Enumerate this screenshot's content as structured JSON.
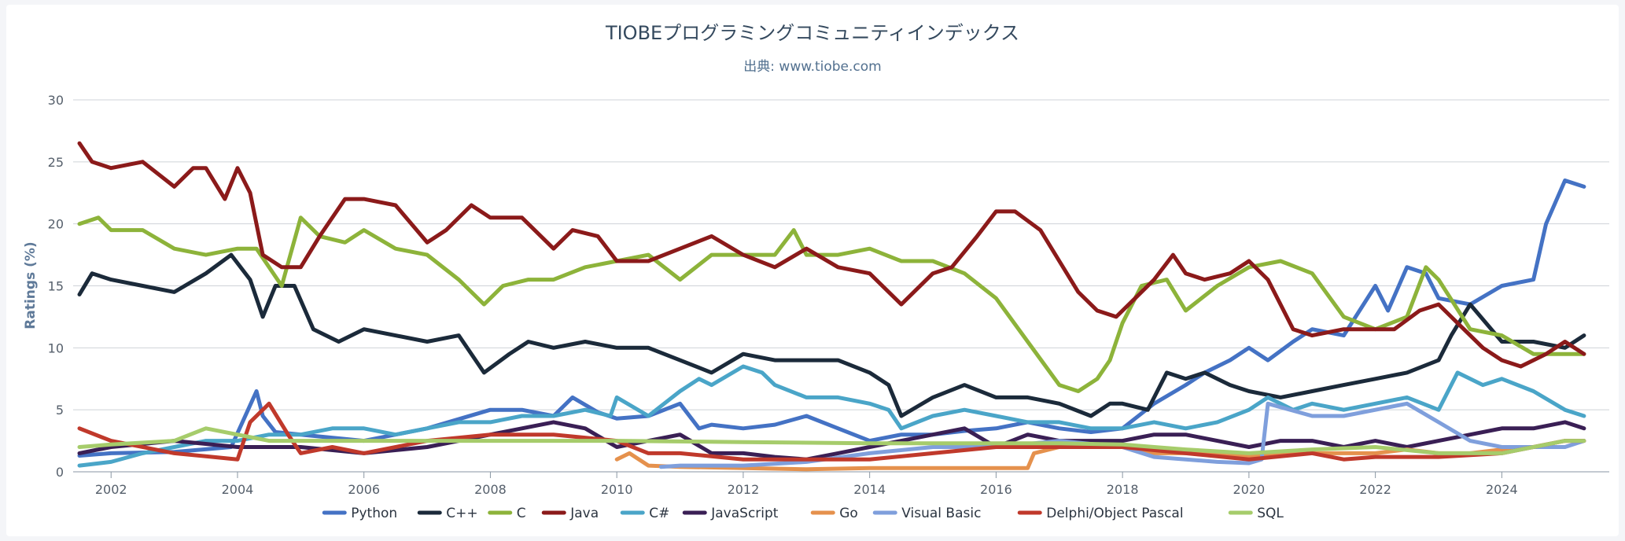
{
  "chart_data": {
    "type": "line",
    "title": "TIOBEプログラミングコミュニティインデックス",
    "subtitle": "出典: www.tiobe.com",
    "ylabel": "Ratings (%)",
    "xlabel": "",
    "xlim": [
      2001.4,
      2025.7
    ],
    "ylim": [
      0,
      30
    ],
    "yticks": [
      0,
      5,
      10,
      15,
      20,
      25,
      30
    ],
    "xticks": [
      2002,
      2004,
      2006,
      2008,
      2010,
      2012,
      2014,
      2016,
      2018,
      2020,
      2022,
      2024
    ],
    "grid": true,
    "legend_position": "bottom",
    "series": [
      {
        "name": "Python",
        "color": "#4472c4",
        "x": [
          2001.5,
          2002,
          2003,
          2003.9,
          2004.3,
          2004.4,
          2004.6,
          2005,
          2006,
          2007,
          2008,
          2008.5,
          2009,
          2009.3,
          2009.7,
          2010,
          2010.5,
          2011,
          2011.3,
          2011.5,
          2012,
          2012.5,
          2013,
          2013.5,
          2014,
          2014.5,
          2015,
          2015.5,
          2016,
          2016.5,
          2017,
          2017.5,
          2018,
          2018.5,
          2019,
          2019.3,
          2019.7,
          2020,
          2020.3,
          2020.7,
          2021,
          2021.5,
          2022,
          2022.2,
          2022.5,
          2022.8,
          2023,
          2023.5,
          2024,
          2024.5,
          2024.7,
          2025,
          2025.3
        ],
        "y": [
          1.3,
          1.5,
          1.6,
          2,
          6.5,
          4.5,
          3.2,
          3,
          2.5,
          3.5,
          5,
          5,
          4.5,
          6,
          4.8,
          4.3,
          4.5,
          5.5,
          3.5,
          3.8,
          3.5,
          3.8,
          4.5,
          3.5,
          2.5,
          3,
          3,
          3.3,
          3.5,
          4,
          3.5,
          3.2,
          3.5,
          5.5,
          7,
          8,
          9,
          10,
          9,
          10.5,
          11.5,
          11,
          15,
          13,
          16.5,
          16,
          14,
          13.5,
          15,
          15.5,
          20,
          23.5,
          23
        ]
      },
      {
        "name": "C++",
        "color": "#1b2a3a",
        "x": [
          2001.5,
          2001.7,
          2002,
          2002.5,
          2003,
          2003.5,
          2003.9,
          2004.2,
          2004.4,
          2004.6,
          2004.9,
          2005.2,
          2005.6,
          2006,
          2007,
          2007.5,
          2007.9,
          2008.3,
          2008.6,
          2009,
          2009.5,
          2010,
          2010.5,
          2011,
          2011.5,
          2012,
          2012.5,
          2013,
          2013.5,
          2014,
          2014.3,
          2014.5,
          2015,
          2015.5,
          2016,
          2016.5,
          2017,
          2017.5,
          2017.8,
          2018,
          2018.4,
          2018.7,
          2019,
          2019.3,
          2019.7,
          2020,
          2020.5,
          2021,
          2021.5,
          2022,
          2022.5,
          2023,
          2023.2,
          2023.5,
          2024,
          2024.5,
          2025,
          2025.3
        ],
        "y": [
          14.3,
          16,
          15.5,
          15,
          14.5,
          16,
          17.5,
          15.5,
          12.5,
          15,
          15,
          11.5,
          10.5,
          11.5,
          10.5,
          11,
          8,
          9.5,
          10.5,
          10,
          10.5,
          10,
          10,
          9,
          8,
          9.5,
          9,
          9,
          9,
          8,
          7,
          4.5,
          6,
          7,
          6,
          6,
          5.5,
          4.5,
          5.5,
          5.5,
          5,
          8,
          7.5,
          8,
          7,
          6.5,
          6,
          6.5,
          7,
          7.5,
          8,
          9,
          11,
          13.5,
          10.5,
          10.5,
          10,
          11
        ]
      },
      {
        "name": "C",
        "color": "#8db33a",
        "x": [
          2001.5,
          2001.8,
          2002,
          2002.5,
          2003,
          2003.5,
          2004,
          2004.3,
          2004.7,
          2005,
          2005.3,
          2005.7,
          2006,
          2006.5,
          2007,
          2007.5,
          2007.9,
          2008.2,
          2008.6,
          2009,
          2009.5,
          2010,
          2010.5,
          2011,
          2011.5,
          2012,
          2012.5,
          2012.8,
          2013,
          2013.5,
          2014,
          2014.5,
          2015,
          2015.5,
          2016,
          2016.5,
          2017,
          2017.3,
          2017.6,
          2017.8,
          2018,
          2018.3,
          2018.7,
          2019,
          2019.5,
          2020,
          2020.5,
          2021,
          2021.5,
          2022,
          2022.5,
          2022.8,
          2023,
          2023.5,
          2024,
          2024.5,
          2025,
          2025.3
        ],
        "y": [
          20,
          20.5,
          19.5,
          19.5,
          18,
          17.5,
          18,
          18,
          15,
          20.5,
          19,
          18.5,
          19.5,
          18,
          17.5,
          15.5,
          13.5,
          15,
          15.5,
          15.5,
          16.5,
          17,
          17.5,
          15.5,
          17.5,
          17.5,
          17.5,
          19.5,
          17.5,
          17.5,
          18,
          17,
          17,
          16,
          14,
          10.5,
          7,
          6.5,
          7.5,
          9,
          12,
          15,
          15.5,
          13,
          15,
          16.5,
          17,
          16,
          12.5,
          11.5,
          12.5,
          16.5,
          15.5,
          11.5,
          11,
          9.5,
          9.5,
          9.5
        ]
      },
      {
        "name": "Java",
        "color": "#8b1a1a",
        "x": [
          2001.5,
          2001.7,
          2002,
          2002.5,
          2003,
          2003.3,
          2003.5,
          2003.8,
          2004,
          2004.2,
          2004.4,
          2004.7,
          2005,
          2005.3,
          2005.7,
          2006,
          2006.5,
          2007,
          2007.3,
          2007.7,
          2008,
          2008.5,
          2009,
          2009.3,
          2009.7,
          2010,
          2010.5,
          2011,
          2011.5,
          2012,
          2012.5,
          2013,
          2013.5,
          2014,
          2014.5,
          2015,
          2015.3,
          2015.7,
          2016,
          2016.3,
          2016.7,
          2017,
          2017.3,
          2017.6,
          2017.9,
          2018.2,
          2018.5,
          2018.8,
          2019,
          2019.3,
          2019.7,
          2020,
          2020.3,
          2020.7,
          2021,
          2021.5,
          2022,
          2022.3,
          2022.7,
          2023,
          2023.3,
          2023.7,
          2024,
          2024.3,
          2024.7,
          2025,
          2025.3
        ],
        "y": [
          26.5,
          25,
          24.5,
          25,
          23,
          24.5,
          24.5,
          22,
          24.5,
          22.5,
          17.5,
          16.5,
          16.5,
          19,
          22,
          22,
          21.5,
          18.5,
          19.5,
          21.5,
          20.5,
          20.5,
          18,
          19.5,
          19,
          17,
          17,
          18,
          19,
          17.5,
          16.5,
          18,
          16.5,
          16,
          13.5,
          16,
          16.5,
          19,
          21,
          21,
          19.5,
          17,
          14.5,
          13,
          12.5,
          14,
          15.5,
          17.5,
          16,
          15.5,
          16,
          17,
          15.5,
          11.5,
          11,
          11.5,
          11.5,
          11.5,
          13,
          13.5,
          12,
          10,
          9,
          8.5,
          9.5,
          10.5,
          9.5
        ]
      },
      {
        "name": "C#",
        "color": "#4aa5c8",
        "x": [
          2001.5,
          2002,
          2002.5,
          2003,
          2003.5,
          2004,
          2004.5,
          2005,
          2005.5,
          2006,
          2006.5,
          2007,
          2007.5,
          2008,
          2008.5,
          2009,
          2009.5,
          2009.9,
          2010,
          2010.5,
          2011,
          2011.3,
          2011.5,
          2012,
          2012.3,
          2012.5,
          2013,
          2013.5,
          2014,
          2014.3,
          2014.5,
          2015,
          2015.5,
          2016,
          2016.5,
          2017,
          2017.5,
          2018,
          2018.5,
          2019,
          2019.5,
          2020,
          2020.3,
          2020.7,
          2021,
          2021.5,
          2022,
          2022.5,
          2023,
          2023.3,
          2023.7,
          2024,
          2024.5,
          2025,
          2025.3
        ],
        "y": [
          0.5,
          0.8,
          1.5,
          2,
          2.5,
          2.5,
          3,
          3,
          3.5,
          3.5,
          3,
          3.5,
          4,
          4,
          4.5,
          4.5,
          5,
          4.5,
          6,
          4.5,
          6.5,
          7.5,
          7,
          8.5,
          8,
          7,
          6,
          6,
          5.5,
          5,
          3.5,
          4.5,
          5,
          4.5,
          4,
          4,
          3.5,
          3.5,
          4,
          3.5,
          4,
          5,
          6,
          5,
          5.5,
          5,
          5.5,
          6,
          5,
          8,
          7,
          7.5,
          6.5,
          5,
          4.5
        ]
      },
      {
        "name": "JavaScript",
        "color": "#3a1f55",
        "x": [
          2001.5,
          2002,
          2003,
          2004,
          2005,
          2006,
          2007,
          2008,
          2008.5,
          2009,
          2009.5,
          2010,
          2010.5,
          2011,
          2011.5,
          2012,
          2012.5,
          2013,
          2013.5,
          2014,
          2014.5,
          2015,
          2015.5,
          2016,
          2016.5,
          2017,
          2017.5,
          2018,
          2018.5,
          2019,
          2019.5,
          2020,
          2020.5,
          2021,
          2021.5,
          2022,
          2022.5,
          2023,
          2023.5,
          2024,
          2024.5,
          2025,
          2025.3
        ],
        "y": [
          1.5,
          2,
          2.5,
          2,
          2,
          1.5,
          2,
          3,
          3.5,
          4,
          3.5,
          2,
          2.5,
          3,
          1.5,
          1.5,
          1.2,
          1,
          1.5,
          2,
          2.5,
          3,
          3.5,
          2,
          3,
          2.5,
          2.5,
          2.5,
          3,
          3,
          2.5,
          2,
          2.5,
          2.5,
          2,
          2.5,
          2,
          2.5,
          3,
          3.5,
          3.5,
          4,
          3.5
        ]
      },
      {
        "name": "Go",
        "color": "#e5914d",
        "x": [
          2010,
          2010.2,
          2010.5,
          2011,
          2012,
          2013,
          2014,
          2015,
          2016,
          2016.5,
          2016.6,
          2017,
          2017.5,
          2018,
          2018.5,
          2019,
          2019.5,
          2020,
          2020.5,
          2021,
          2021.5,
          2022,
          2022.5,
          2023,
          2023.5,
          2024,
          2024.5,
          2025,
          2025.3
        ],
        "y": [
          1,
          1.5,
          0.5,
          0.4,
          0.3,
          0.2,
          0.3,
          0.3,
          0.3,
          0.3,
          1.5,
          2,
          2,
          2,
          1.5,
          1.5,
          1.5,
          1.3,
          1.5,
          1.5,
          1.5,
          1.5,
          1.8,
          1.5,
          1.5,
          1.8,
          2,
          2.5,
          2.5
        ]
      },
      {
        "name": "Visual Basic",
        "color": "#7f9fdc",
        "x": [
          2010.7,
          2011,
          2012,
          2013,
          2014,
          2015,
          2016,
          2017,
          2018,
          2018.5,
          2019,
          2019.5,
          2020,
          2020.2,
          2020.3,
          2021,
          2021.5,
          2022,
          2022.5,
          2023,
          2023.5,
          2024,
          2024.5,
          2025,
          2025.3
        ],
        "y": [
          0.4,
          0.5,
          0.5,
          0.8,
          1.5,
          2,
          2,
          2.5,
          2,
          1.2,
          1,
          0.8,
          0.7,
          1,
          5.5,
          4.5,
          4.5,
          5,
          5.5,
          4,
          2.5,
          2,
          2,
          2,
          2.5
        ]
      },
      {
        "name": "Delphi/Object Pascal",
        "color": "#c0392b",
        "x": [
          2001.5,
          2002,
          2003,
          2004,
          2004.2,
          2004.5,
          2004.8,
          2005,
          2005.5,
          2006,
          2007,
          2008,
          2009,
          2010,
          2010.5,
          2011,
          2012,
          2013,
          2014,
          2015,
          2016,
          2017,
          2018,
          2019,
          2020,
          2021,
          2021.5,
          2022,
          2023,
          2024,
          2025,
          2025.3
        ],
        "y": [
          3.5,
          2.5,
          1.5,
          1,
          4,
          5.5,
          3,
          1.5,
          2,
          1.5,
          2.5,
          3,
          3,
          2.5,
          1.5,
          1.5,
          1,
          1,
          1,
          1.5,
          2,
          2,
          2,
          1.5,
          1,
          1.5,
          1,
          1.2,
          1.2,
          1.5,
          2.5,
          2.5
        ]
      },
      {
        "name": "SQL",
        "color": "#a6cc6b",
        "x": [
          2001.5,
          2002,
          2003,
          2003.5,
          2004,
          2004.5,
          2005,
          2006,
          2008,
          2010,
          2012,
          2014,
          2016,
          2017,
          2018,
          2018.5,
          2019,
          2020,
          2021,
          2022,
          2023,
          2024,
          2025,
          2025.3
        ],
        "y": [
          2,
          2.2,
          2.5,
          3.5,
          3,
          2.5,
          2.5,
          2.5,
          2.5,
          2.5,
          2.4,
          2.3,
          2.3,
          2.3,
          2.2,
          2,
          1.8,
          1.5,
          1.8,
          2,
          1.5,
          1.5,
          2.5,
          2.5
        ]
      }
    ]
  }
}
